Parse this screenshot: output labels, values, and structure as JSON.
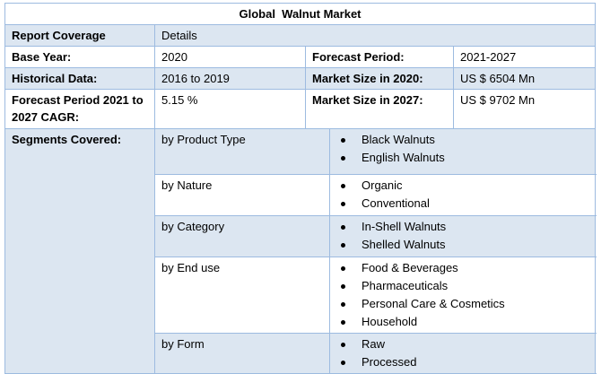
{
  "title": "Global  Walnut Market",
  "header": [
    "Report Coverage",
    "Details"
  ],
  "rows": [
    [
      "Base Year:",
      "2020",
      "Forecast Period:",
      "2021-2027"
    ],
    [
      "Historical Data:",
      "2016 to 2019",
      "Market Size in 2020:",
      "US $ 6504 Mn"
    ],
    [
      "Forecast Period 2021 to 2027 CAGR:",
      "5.15 %",
      "Market Size in 2027:",
      "US $ 9702 Mn"
    ]
  ],
  "segments": {
    "label": "Segments Covered:",
    "groups": [
      {
        "name": "by Product Type",
        "items": [
          "Black Walnuts",
          "English Walnuts"
        ]
      },
      {
        "name": "by Nature",
        "items": [
          "Organic",
          "Conventional"
        ]
      },
      {
        "name": "by Category",
        "items": [
          "In-Shell Walnuts",
          "Shelled Walnuts"
        ]
      },
      {
        "name": "by End use",
        "items": [
          "Food & Beverages",
          "Pharmaceuticals",
          "Personal Care & Cosmetics",
          "Household"
        ]
      },
      {
        "name": "by Form",
        "items": [
          "Raw",
          "Processed"
        ]
      }
    ]
  }
}
